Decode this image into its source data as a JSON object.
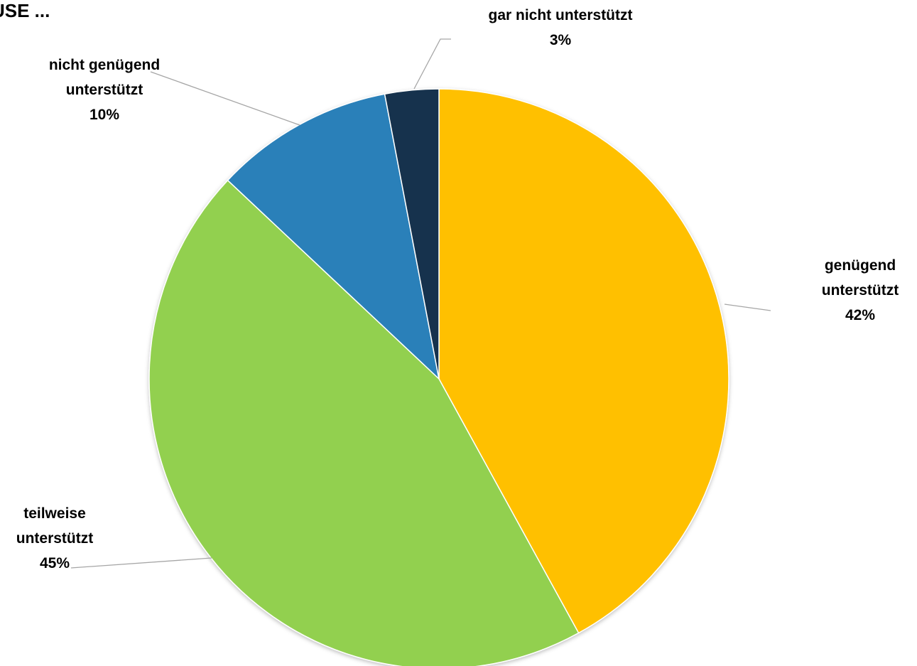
{
  "title": "USE ...",
  "chart_data": {
    "type": "pie",
    "title": "USE ...",
    "start_angle": "12 o'clock, clockwise",
    "slices": [
      {
        "name": "genügend unterstützt",
        "label_lines": [
          "genügend",
          "unterstützt"
        ],
        "value": 42,
        "value_label": "42%",
        "color": "#ffc000"
      },
      {
        "name": "teilweise unterstützt",
        "label_lines": [
          "teilweise",
          "unterstützt"
        ],
        "value": 45,
        "value_label": "45%",
        "color": "#92d050"
      },
      {
        "name": "nicht genügend unterstützt",
        "label_lines": [
          "nicht genügend",
          "unterstützt"
        ],
        "value": 10,
        "value_label": "10%",
        "color": "#2980b9"
      },
      {
        "name": "gar nicht unterstützt",
        "label_lines": [
          "gar nicht unterstützt"
        ],
        "value": 3,
        "value_label": "3%",
        "color": "#14334d"
      }
    ]
  }
}
